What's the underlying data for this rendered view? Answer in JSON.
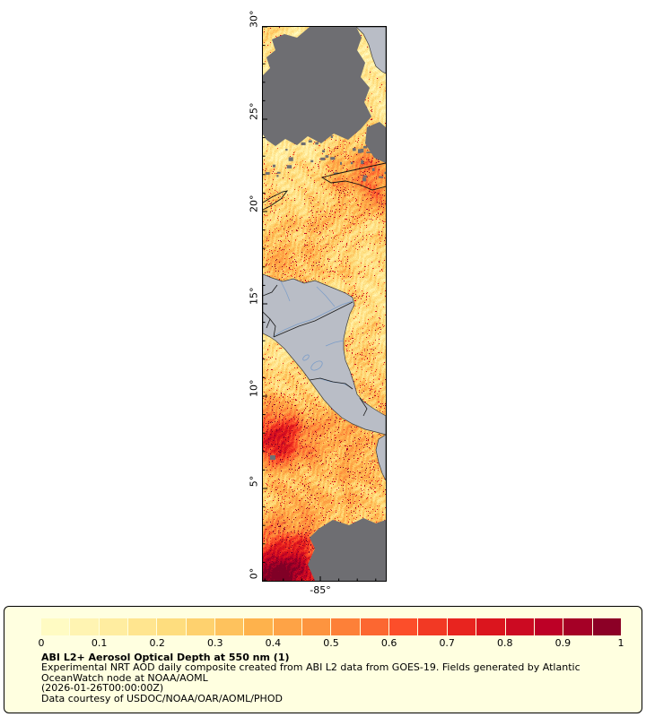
{
  "page": {
    "background": "#ffffff"
  },
  "map_panel": {
    "y_ticks": [
      "30°",
      "25°",
      "20°",
      "15°",
      "10°",
      "5°",
      "0°"
    ],
    "x_ticks": [
      "-85°"
    ],
    "colors": {
      "land": "#b9bdc6",
      "no_data": "#6e6e72",
      "river": "#7a9cc8",
      "border_line": "#1a1a1a",
      "coast_line": "#3c3c3c",
      "frame": "#000000"
    }
  },
  "legend": {
    "background": "#ffffe0",
    "ticks": [
      "0",
      "0.1",
      "0.2",
      "0.3",
      "0.4",
      "0.5",
      "0.6",
      "0.7",
      "0.8",
      "0.9",
      "1"
    ],
    "title": "ABI L2+ Aerosol Optical Depth at 550 nm (1)",
    "lines": [
      "Experimental NRT AOD daily composite created from ABI L2 data from GOES-19. Fields generated by Atlantic",
      "OceanWatch node at NOAA/AOML",
      "(2026-01-26T00:00:00Z)",
      "Data courtesy of USDOC/NOAA/OAR/AOML/PHOD"
    ]
  },
  "chart_data": {
    "type": "heatmap",
    "title": "ABI L2+ Aerosol Optical Depth at 550 nm (1)",
    "variable": "Aerosol Optical Depth at 550 nm",
    "units": "dimensionless (1)",
    "source_text": "Experimental NRT AOD daily composite created from ABI L2 data from GOES-19. Fields generated by Atlantic OceanWatch node at NOAA/AOML",
    "timestamp": "(2026-01-26T00:00:00Z)",
    "credit": "Data courtesy of USDOC/NOAA/OAR/AOML/PHOD",
    "axes": {
      "lat_tick_labels": [
        "30°",
        "25°",
        "20°",
        "15°",
        "10°",
        "5°",
        "0°"
      ],
      "lat_range_deg": [
        0,
        30
      ],
      "lon_tick_labels": [
        "-85°"
      ],
      "grid": false
    },
    "colorbar": {
      "min": 0,
      "max": 1,
      "tick_values": [
        0,
        0.1,
        0.2,
        0.3,
        0.4,
        0.5,
        0.6,
        0.7,
        0.8,
        0.9,
        1
      ],
      "n_bins": 20,
      "orientation": "horizontal"
    },
    "colormap": {
      "name": "YlOrRd",
      "anchors": [
        [
          0.0,
          "#ffffcc"
        ],
        [
          0.125,
          "#ffeda0"
        ],
        [
          0.25,
          "#fed976"
        ],
        [
          0.375,
          "#feb24c"
        ],
        [
          0.5,
          "#fd8d3c"
        ],
        [
          0.625,
          "#fc4e2a"
        ],
        [
          0.75,
          "#e31a1c"
        ],
        [
          0.875,
          "#bd0026"
        ],
        [
          1.0,
          "#800026"
        ]
      ]
    },
    "legend_position": "bottom",
    "notes": "AOD field over ocean shown in YlOrRd colors (mostly 0.05-0.5 with hot spots near 1 at low latitudes); land shown gray; missing/cloud regions dark gray"
  }
}
